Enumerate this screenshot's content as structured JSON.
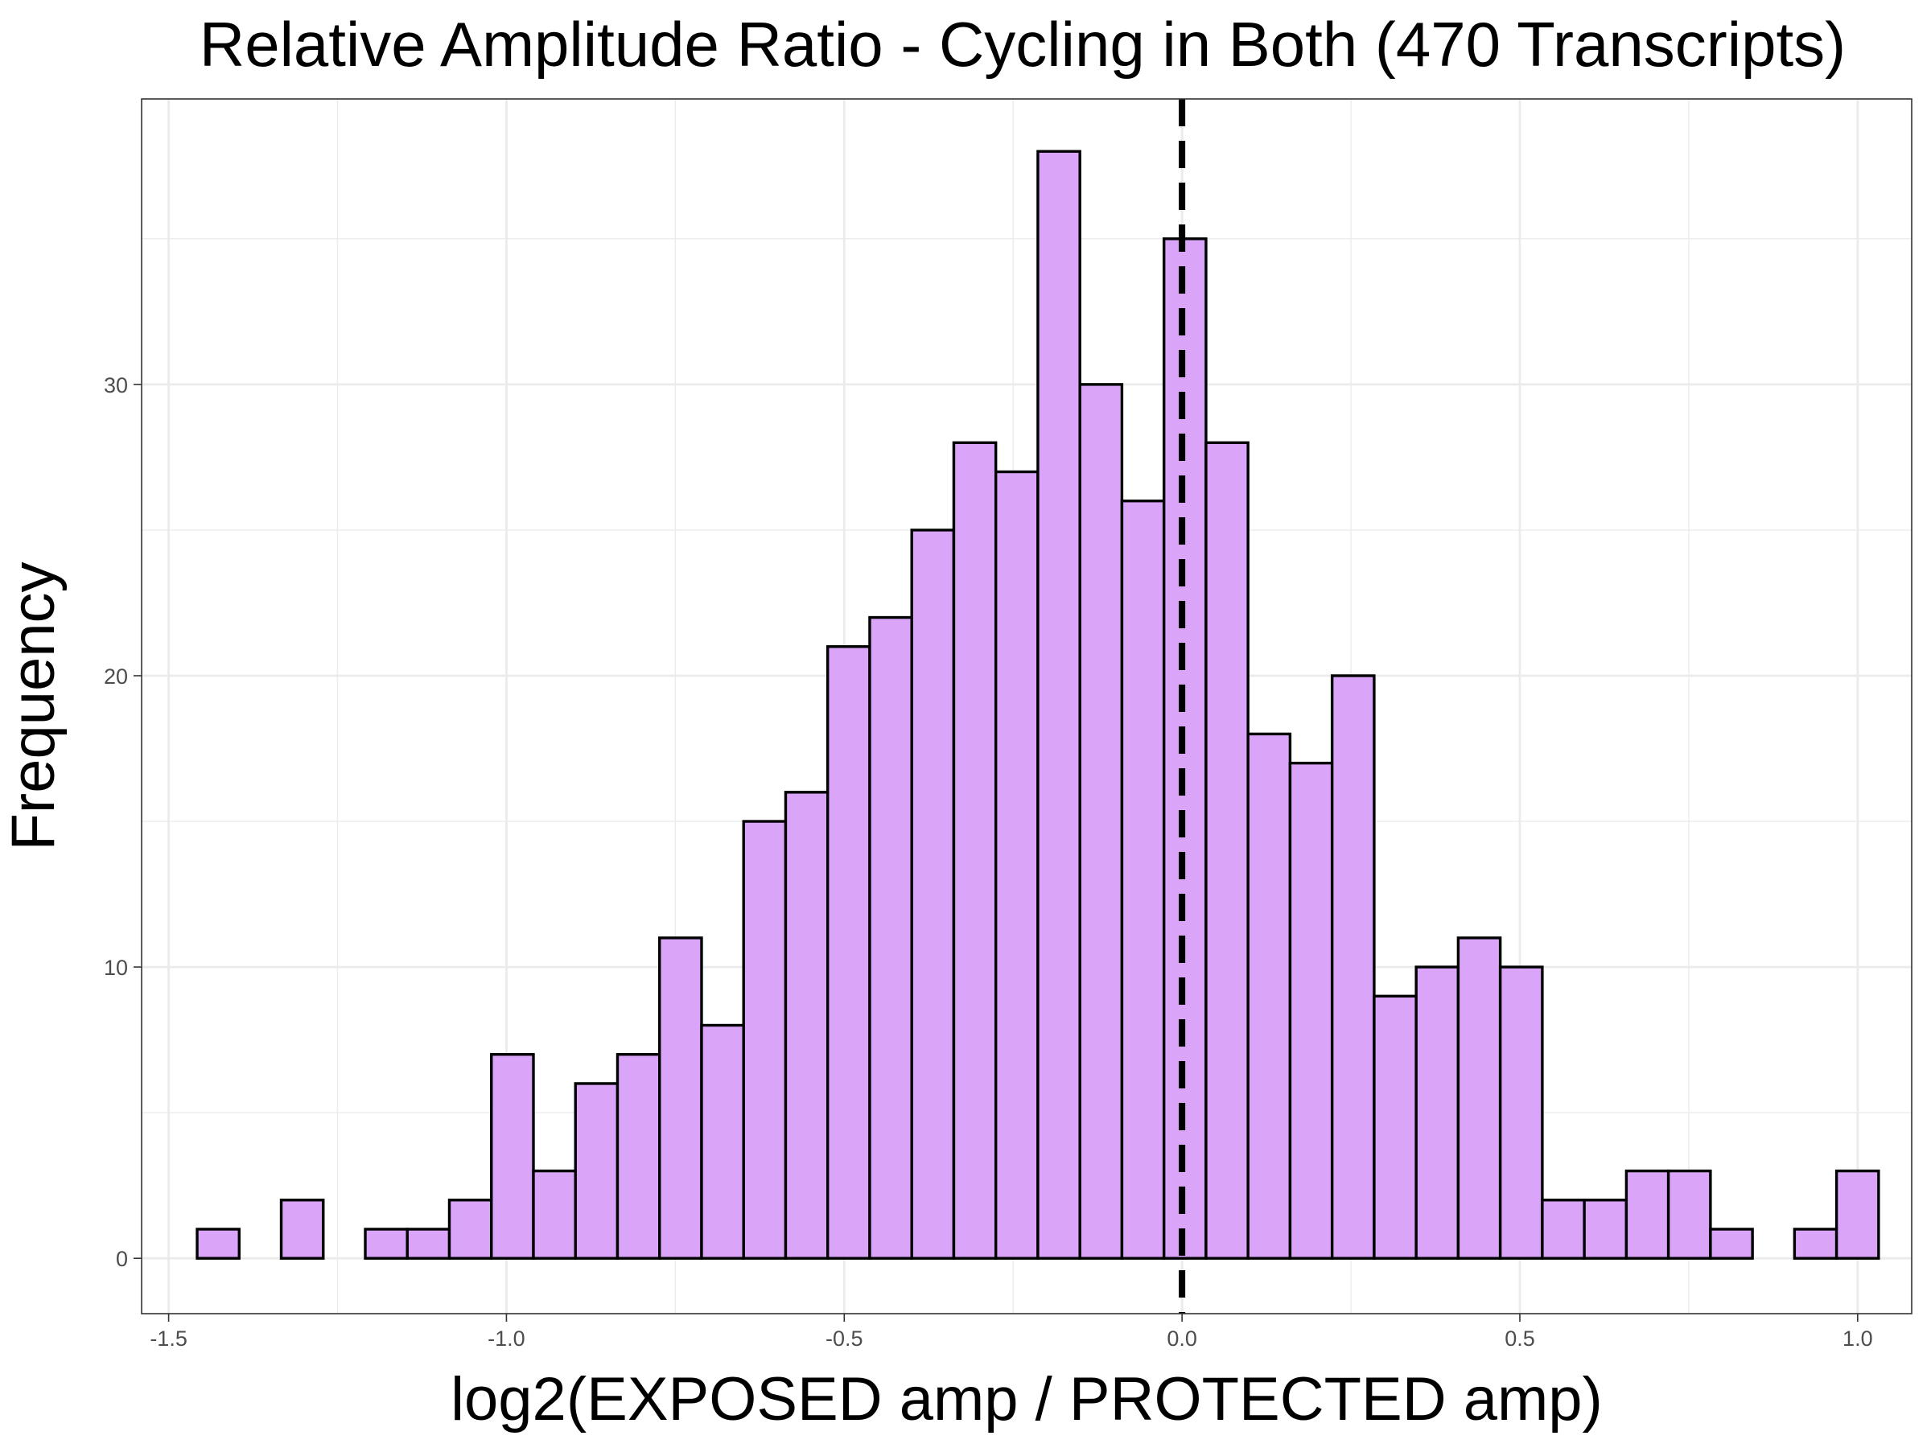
{
  "chart_data": {
    "type": "bar",
    "title": "Relative Amplitude Ratio - Cycling in Both (470 Transcripts)",
    "xlabel": "log2(EXPOSED amp / PROTECTED amp)",
    "ylabel": "Frequency",
    "xlim": [
      -1.54,
      1.08
    ],
    "ylim": [
      -1.9,
      39.8
    ],
    "x_ticks": [
      {
        "value": -1.5,
        "label": "-1.5"
      },
      {
        "value": -1.0,
        "label": "-1.0"
      },
      {
        "value": -0.5,
        "label": "-0.5"
      },
      {
        "value": 0.0,
        "label": "0.0"
      },
      {
        "value": 0.5,
        "label": "0.5"
      },
      {
        "value": 1.0,
        "label": "1.0"
      }
    ],
    "y_ticks": [
      {
        "value": 0,
        "label": "0"
      },
      {
        "value": 10,
        "label": "10"
      },
      {
        "value": 20,
        "label": "20"
      },
      {
        "value": 30,
        "label": "30"
      }
    ],
    "bin_start": -1.4578,
    "bin_width": 0.06222,
    "values": [
      1,
      0,
      2,
      0,
      1,
      1,
      2,
      7,
      3,
      6,
      7,
      11,
      8,
      15,
      16,
      21,
      22,
      25,
      28,
      27,
      38,
      30,
      26,
      35,
      28,
      18,
      17,
      20,
      9,
      10,
      11,
      10,
      2,
      2,
      3,
      3,
      1,
      0,
      1,
      3
    ],
    "reference_line": {
      "x": 0,
      "style": "dashed"
    },
    "grid": true,
    "legend": "none",
    "colors": {
      "bar_fill": "#DAA4F9",
      "bar_stroke": "#000000",
      "grid": "#EBEBEB",
      "reference_line": "#000000"
    }
  }
}
